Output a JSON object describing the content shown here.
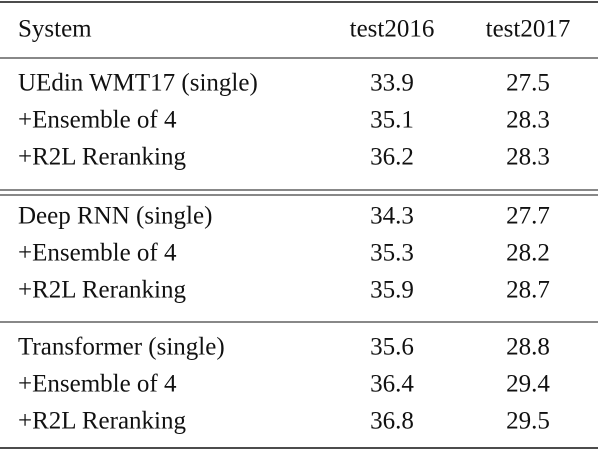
{
  "table": {
    "header": [
      "System",
      "test2016",
      "test2017"
    ],
    "groups": [
      [
        [
          "UEdin WMT17 (single)",
          "33.9",
          "27.5"
        ],
        [
          "+Ensemble of 4",
          "35.1",
          "28.3"
        ],
        [
          "+R2L Reranking",
          "36.2",
          "28.3"
        ]
      ],
      [
        [
          "Deep RNN (single)",
          "34.3",
          "27.7"
        ],
        [
          "+Ensemble of 4",
          "35.3",
          "28.2"
        ],
        [
          "+R2L Reranking",
          "35.9",
          "28.7"
        ]
      ],
      [
        [
          "Transformer (single)",
          "35.6",
          "28.8"
        ],
        [
          "+Ensemble of 4",
          "36.4",
          "29.4"
        ],
        [
          "+R2L Reranking",
          "36.8",
          "29.5"
        ]
      ]
    ]
  }
}
